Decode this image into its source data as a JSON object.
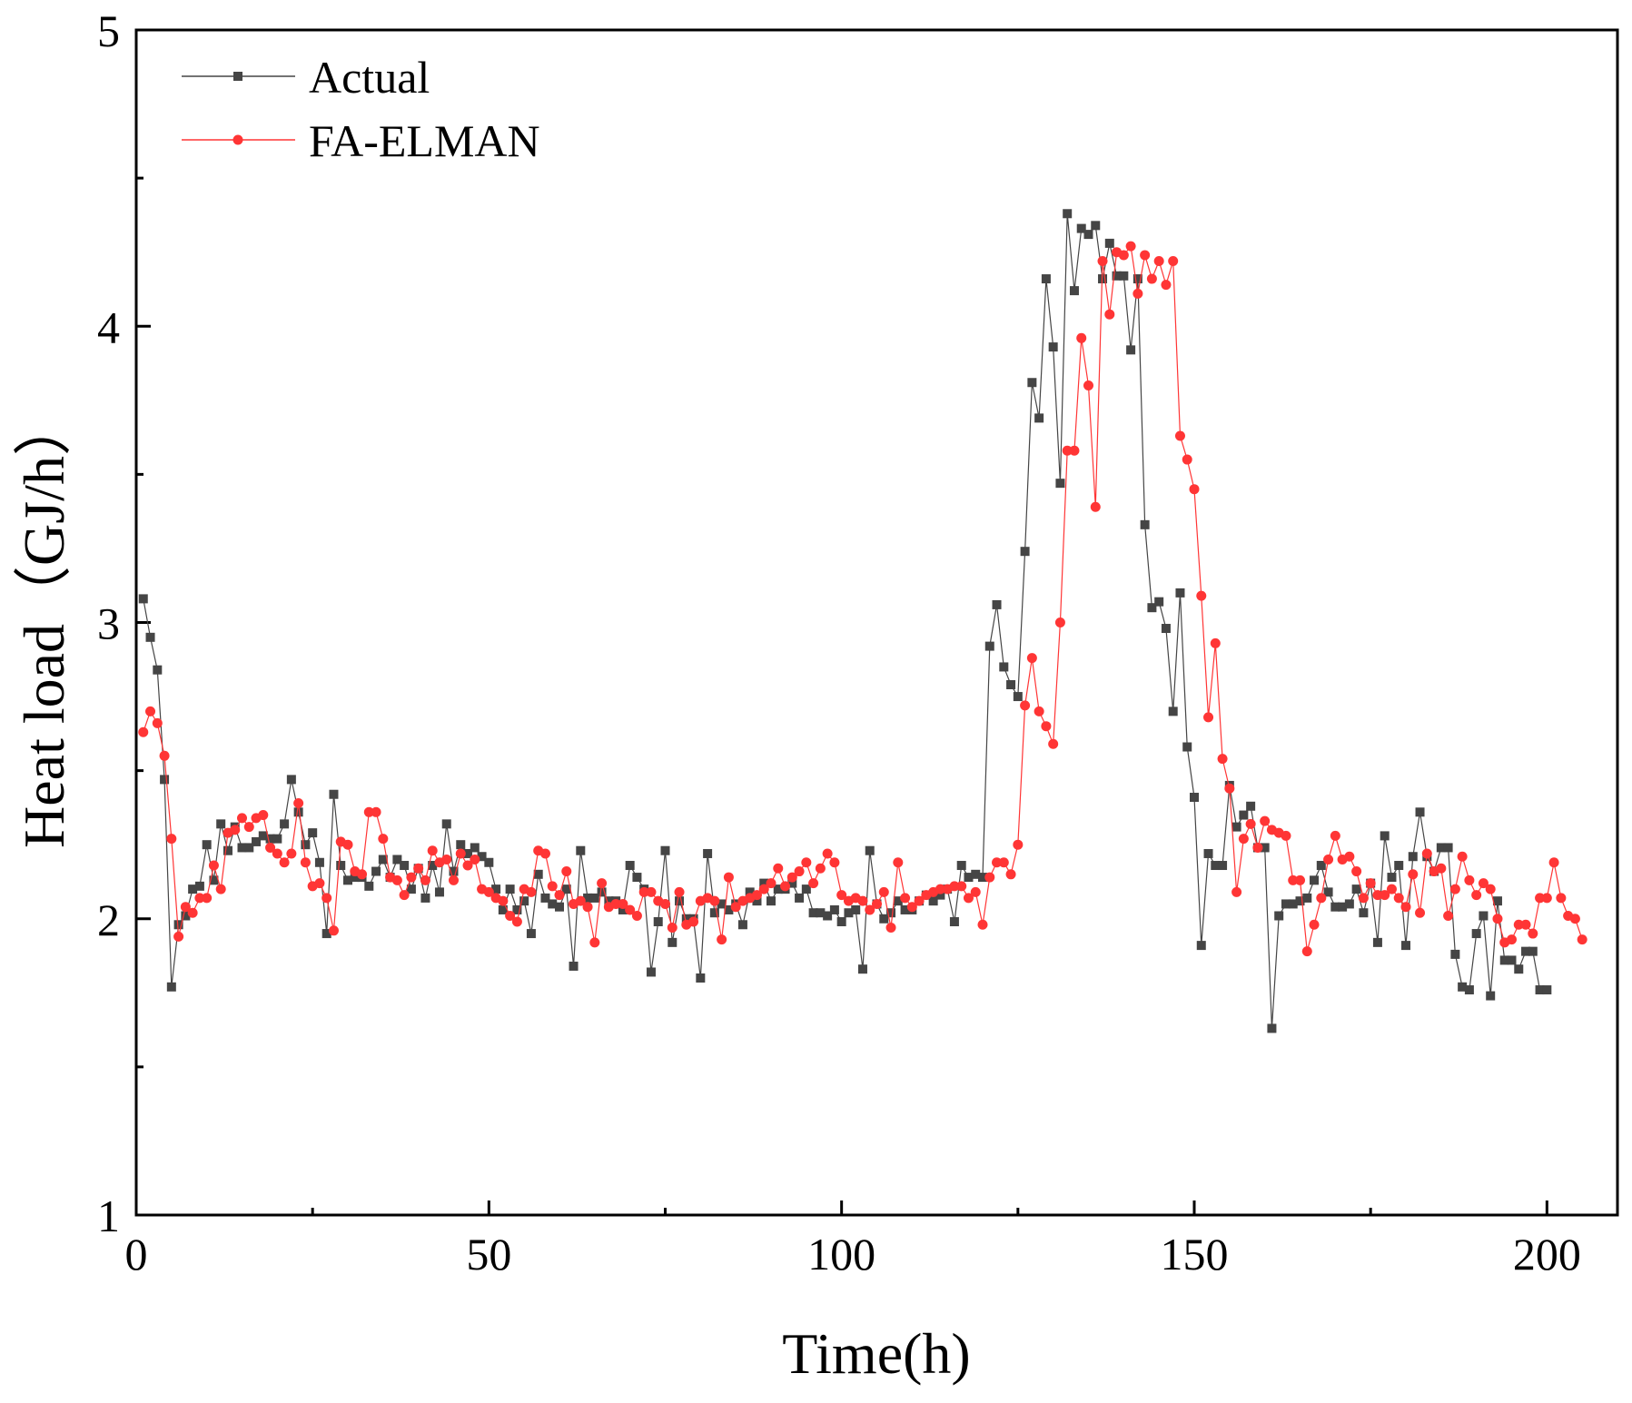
{
  "chart_data": {
    "type": "line",
    "title": "",
    "xlabel": "Time(h)",
    "ylabel": "Heat load（GJ/h）",
    "xlim": [
      0,
      210
    ],
    "ylim": [
      1,
      5
    ],
    "x_ticks": [
      0,
      50,
      100,
      150,
      200
    ],
    "x_minor_ticks": [
      25,
      75,
      125,
      175
    ],
    "y_ticks": [
      1,
      2,
      3,
      4,
      5
    ],
    "y_minor_ticks": [
      1.5,
      2.5,
      3.5,
      4.5
    ],
    "legend_position": "top-left",
    "series": [
      {
        "name": "Actual",
        "color": "#454545",
        "marker": "square",
        "values": [
          3.08,
          2.95,
          2.84,
          2.47,
          1.77,
          1.98,
          2.01,
          2.1,
          2.11,
          2.25,
          2.13,
          2.32,
          2.23,
          2.31,
          2.24,
          2.24,
          2.26,
          2.28,
          2.27,
          2.27,
          2.32,
          2.47,
          2.36,
          2.25,
          2.29,
          2.19,
          1.95,
          2.42,
          2.18,
          2.13,
          2.14,
          2.14,
          2.11,
          2.16,
          2.2,
          2.14,
          2.2,
          2.18,
          2.1,
          2.17,
          2.07,
          2.18,
          2.09,
          2.32,
          2.16,
          2.25,
          2.22,
          2.24,
          2.21,
          2.19,
          2.1,
          2.03,
          2.1,
          2.03,
          2.06,
          1.95,
          2.15,
          2.07,
          2.05,
          2.04,
          2.1,
          1.84,
          2.23,
          2.07,
          2.07,
          2.09,
          2.06,
          2.06,
          2.03,
          2.18,
          2.14,
          2.1,
          1.82,
          1.99,
          2.23,
          1.92,
          2.06,
          2.0,
          2.0,
          1.8,
          2.22,
          2.02,
          2.05,
          2.03,
          2.05,
          1.98,
          2.09,
          2.06,
          2.12,
          2.06,
          2.1,
          2.1,
          2.12,
          2.07,
          2.1,
          2.02,
          2.02,
          2.01,
          2.03,
          1.99,
          2.02,
          2.03,
          1.83,
          2.23,
          2.05,
          2.0,
          2.02,
          2.06,
          2.03,
          2.03,
          2.06,
          2.08,
          2.06,
          2.08,
          2.1,
          1.99,
          2.18,
          2.14,
          2.15,
          2.14,
          2.92,
          3.06,
          2.85,
          2.79,
          2.75,
          3.24,
          3.81,
          3.69,
          4.16,
          3.93,
          3.47,
          4.38,
          4.12,
          4.33,
          4.31,
          4.34,
          4.16,
          4.28,
          4.17,
          4.17,
          3.92,
          4.16,
          3.33,
          3.05,
          3.07,
          2.98,
          2.7,
          3.1,
          2.58,
          2.41,
          1.91,
          2.22,
          2.18,
          2.18,
          2.45,
          2.31,
          2.35,
          2.38,
          2.24,
          2.24,
          1.63,
          2.01,
          2.05,
          2.05,
          2.06,
          2.07,
          2.13,
          2.18,
          2.09,
          2.04,
          2.04,
          2.05,
          2.1,
          2.02,
          2.12,
          1.92,
          2.28,
          2.14,
          2.18,
          1.91,
          2.21,
          2.36,
          2.21,
          2.16,
          2.24,
          2.24,
          1.88,
          1.77,
          1.76,
          1.95,
          2.01,
          1.74,
          2.06,
          1.86,
          1.86,
          1.83,
          1.89,
          1.89,
          1.76,
          1.76
        ]
      },
      {
        "name": "FA-ELMAN",
        "color": "#ff3535",
        "marker": "circle",
        "values": [
          2.63,
          2.7,
          2.66,
          2.55,
          2.27,
          1.94,
          2.04,
          2.02,
          2.07,
          2.07,
          2.18,
          2.1,
          2.29,
          2.3,
          2.34,
          2.31,
          2.34,
          2.35,
          2.24,
          2.22,
          2.19,
          2.22,
          2.39,
          2.19,
          2.11,
          2.12,
          2.07,
          1.96,
          2.26,
          2.25,
          2.16,
          2.15,
          2.36,
          2.36,
          2.27,
          2.14,
          2.13,
          2.08,
          2.14,
          2.17,
          2.13,
          2.23,
          2.19,
          2.2,
          2.13,
          2.22,
          2.18,
          2.2,
          2.1,
          2.09,
          2.07,
          2.06,
          2.01,
          1.99,
          2.1,
          2.09,
          2.23,
          2.22,
          2.11,
          2.08,
          2.16,
          2.05,
          2.06,
          2.04,
          1.92,
          2.12,
          2.04,
          2.05,
          2.05,
          2.03,
          2.01,
          2.09,
          2.09,
          2.06,
          2.05,
          1.97,
          2.09,
          1.98,
          1.99,
          2.06,
          2.07,
          2.06,
          1.93,
          2.14,
          2.04,
          2.06,
          2.07,
          2.08,
          2.1,
          2.12,
          2.17,
          2.11,
          2.14,
          2.16,
          2.19,
          2.12,
          2.17,
          2.22,
          2.19,
          2.08,
          2.06,
          2.07,
          2.06,
          2.03,
          2.05,
          2.09,
          1.97,
          2.19,
          2.07,
          2.04,
          2.06,
          2.08,
          2.09,
          2.1,
          2.1,
          2.11,
          2.11,
          2.07,
          2.09,
          1.98,
          2.14,
          2.19,
          2.19,
          2.15,
          2.25,
          2.72,
          2.88,
          2.7,
          2.65,
          2.59,
          3.0,
          3.58,
          3.58,
          3.96,
          3.8,
          3.39,
          4.22,
          4.04,
          4.25,
          4.24,
          4.27,
          4.11,
          4.24,
          4.16,
          4.22,
          4.14,
          4.22,
          3.63,
          3.55,
          3.45,
          3.09,
          2.68,
          2.93,
          2.54,
          2.44,
          2.09,
          2.27,
          2.32,
          2.24,
          2.33,
          2.3,
          2.29,
          2.28,
          2.13,
          2.13,
          1.89,
          1.98,
          2.07,
          2.2,
          2.28,
          2.2,
          2.21,
          2.16,
          2.07,
          2.12,
          2.08,
          2.08,
          2.1,
          2.07,
          2.04,
          2.15,
          2.02,
          2.22,
          2.16,
          2.17,
          2.01,
          2.1,
          2.21,
          2.13,
          2.08,
          2.12,
          2.1,
          2.0,
          1.92,
          1.93,
          1.98,
          1.98,
          1.95,
          2.07,
          2.07,
          2.19,
          2.07,
          2.01,
          2.0,
          1.93
        ]
      }
    ]
  }
}
